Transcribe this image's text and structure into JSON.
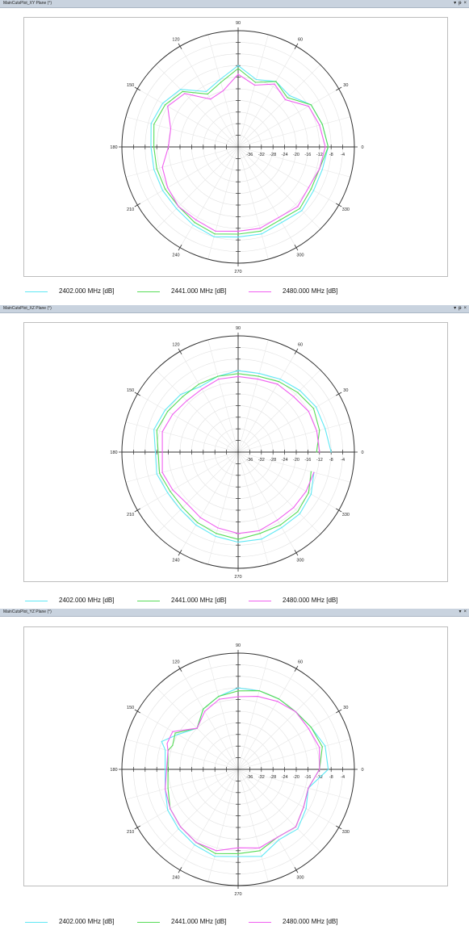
{
  "panels": [
    {
      "title": "MainCutsPlot_XY Plane (°)",
      "controls": [
        "▾",
        "ᵽ",
        "×"
      ]
    },
    {
      "title": "MainCutsPlot_XZ Plane (°)",
      "controls": [
        "▾",
        "ᵽ",
        "×"
      ]
    },
    {
      "title": "MainCutsPlot_YZ Plane (°)",
      "controls": [
        "▾",
        "×"
      ]
    }
  ],
  "colors": {
    "s2402": "#5fe8f5",
    "s2441": "#58dc58",
    "s2480": "#f060f0"
  },
  "chart_data": [
    {
      "type": "polar-line",
      "angle_labels": [
        "0",
        "30",
        "60",
        "90",
        "120",
        "150",
        "180",
        "210",
        "240",
        "270",
        "300",
        "330"
      ],
      "radial_ticks": [
        "-36",
        "-32",
        "-28",
        "-24",
        "-20",
        "-16",
        "-12",
        "-8",
        "-4"
      ],
      "rlim": [
        -40,
        0
      ],
      "series": [
        {
          "name": "2402.000 MHz [dB]",
          "color": "#5fe8f5",
          "angles": [
            0,
            15,
            30,
            45,
            60,
            75,
            90,
            105,
            120,
            135,
            150,
            165,
            180,
            195,
            210,
            225,
            240,
            255,
            270,
            285,
            300,
            315,
            330,
            345
          ],
          "values": [
            -9,
            -10,
            -11,
            -15,
            -14,
            -16,
            -12,
            -16,
            -18,
            -12,
            -10,
            -9,
            -10,
            -10,
            -10,
            -10,
            -9,
            -8,
            -9,
            -9,
            -10,
            -9,
            -10,
            -10
          ]
        },
        {
          "name": "2441.000 MHz [dB]",
          "color": "#58dc58",
          "angles": [
            0,
            15,
            30,
            45,
            60,
            75,
            90,
            105,
            120,
            135,
            150,
            165,
            180,
            195,
            210,
            225,
            240,
            255,
            270,
            285,
            300,
            315,
            330,
            345
          ],
          "values": [
            -9,
            -10,
            -11,
            -16,
            -14,
            -17,
            -13,
            -17,
            -19,
            -13,
            -11,
            -10,
            -11,
            -11,
            -11,
            -11,
            -10,
            -9,
            -10,
            -10,
            -11,
            -10,
            -11,
            -11
          ]
        },
        {
          "name": "2480.000 MHz [dB]",
          "color": "#f060f0",
          "angles": [
            0,
            15,
            30,
            45,
            60,
            75,
            90,
            105,
            120,
            135,
            150,
            165,
            180,
            195,
            210,
            225,
            240,
            255,
            270,
            285,
            300,
            315,
            330,
            345
          ],
          "values": [
            -10,
            -11,
            -12,
            -17,
            -15,
            -18,
            -15,
            -20,
            -21,
            -14,
            -12,
            -16,
            -16,
            -13,
            -12,
            -11,
            -11,
            -10,
            -11,
            -11,
            -12,
            -11,
            -12,
            -11
          ]
        }
      ]
    },
    {
      "type": "polar-line",
      "angle_labels": [
        "0",
        "30",
        "60",
        "90",
        "120",
        "150",
        "180",
        "210",
        "240",
        "270",
        "300",
        "330"
      ],
      "radial_ticks": [
        "-36",
        "-32",
        "-28",
        "-24",
        "-20",
        "-16",
        "-12",
        "-8",
        "-4"
      ],
      "rlim": [
        -40,
        0
      ],
      "series": [
        {
          "name": "2402.000 MHz [dB]",
          "color": "#5fe8f5",
          "angles": [
            0,
            15,
            30,
            45,
            60,
            75,
            90,
            105,
            120,
            135,
            150,
            165,
            195,
            210,
            225,
            240,
            255,
            270,
            285,
            300,
            315,
            330,
            345
          ],
          "values": [
            -8,
            -9,
            -9,
            -10,
            -11,
            -12,
            -12,
            -13,
            -14,
            -12,
            -11,
            -10,
            -11,
            -12,
            -12,
            -11,
            -10,
            -9,
            -9,
            -10,
            -10,
            -11,
            -13
          ]
        },
        {
          "name": "2441.000 MHz [dB]",
          "color": "#58dc58",
          "angles": [
            0,
            15,
            30,
            45,
            60,
            75,
            90,
            105,
            120,
            135,
            150,
            165,
            195,
            210,
            225,
            240,
            255,
            270,
            285,
            300,
            315,
            330,
            345
          ],
          "values": [
            -13,
            -11,
            -10,
            -11,
            -12,
            -13,
            -13,
            -13,
            -13,
            -13,
            -12,
            -11,
            -12,
            -13,
            -13,
            -12,
            -11,
            -10,
            -11,
            -11,
            -11,
            -12,
            -14
          ]
        },
        {
          "name": "2480.000 MHz [dB]",
          "color": "#f060f0",
          "angles": [
            0,
            15,
            30,
            45,
            60,
            75,
            90,
            105,
            120,
            135,
            150,
            165,
            195,
            210,
            225,
            240,
            255,
            270,
            285,
            300,
            315,
            330,
            345
          ],
          "values": [
            -12,
            -12,
            -12,
            -13,
            -13,
            -14,
            -14,
            -14,
            -15,
            -15,
            -14,
            -13,
            -13,
            -14,
            -15,
            -14,
            -13,
            -12,
            -12,
            -13,
            -13,
            -13,
            -13
          ]
        }
      ]
    },
    {
      "type": "polar-line",
      "angle_labels": [
        "0",
        "30",
        "60",
        "90",
        "120",
        "150",
        "180",
        "210",
        "240",
        "270",
        "300",
        "330"
      ],
      "radial_ticks": [
        "-36",
        "-32",
        "-28",
        "-24",
        "-20",
        "-16",
        "-12",
        "-8",
        "-4"
      ],
      "rlim": [
        -40,
        0
      ],
      "series": [
        {
          "name": "2402.000 MHz [dB]",
          "color": "#5fe8f5",
          "angles": [
            0,
            15,
            30,
            45,
            60,
            75,
            90,
            105,
            120,
            135,
            150,
            160,
            165,
            195,
            210,
            225,
            240,
            255,
            270,
            285,
            300,
            315,
            330,
            345
          ],
          "values": [
            -9,
            -9,
            -11,
            -12,
            -12,
            -12,
            -12,
            -14,
            -16,
            -20,
            -16,
            -12,
            -14,
            -14,
            -12,
            -11,
            -10,
            -9,
            -10,
            -9,
            -12,
            -11,
            -13,
            -15
          ]
        },
        {
          "name": "2441.000 MHz [dB]",
          "color": "#58dc58",
          "angles": [
            0,
            15,
            30,
            45,
            60,
            75,
            90,
            105,
            120,
            135,
            150,
            160,
            165,
            195,
            210,
            225,
            240,
            255,
            270,
            285,
            300,
            315,
            330,
            345
          ],
          "values": [
            -12,
            -10,
            -11,
            -12,
            -12,
            -12,
            -13,
            -14,
            -16,
            -20,
            -15,
            -16,
            -15,
            -15,
            -13,
            -12,
            -11,
            -10,
            -11,
            -11,
            -13,
            -12,
            -14,
            -15
          ]
        },
        {
          "name": "2480.000 MHz [dB]",
          "color": "#f060f0",
          "angles": [
            0,
            15,
            30,
            45,
            60,
            75,
            90,
            105,
            120,
            135,
            150,
            160,
            165,
            195,
            210,
            225,
            240,
            255,
            270,
            285,
            300,
            315,
            330,
            345
          ],
          "values": [
            -12,
            -11,
            -12,
            -12,
            -13,
            -14,
            -15,
            -15,
            -17,
            -20,
            -14,
            -14,
            -15,
            -14,
            -13,
            -12,
            -11,
            -11,
            -13,
            -12,
            -13,
            -12,
            -14,
            -15
          ]
        }
      ]
    }
  ]
}
